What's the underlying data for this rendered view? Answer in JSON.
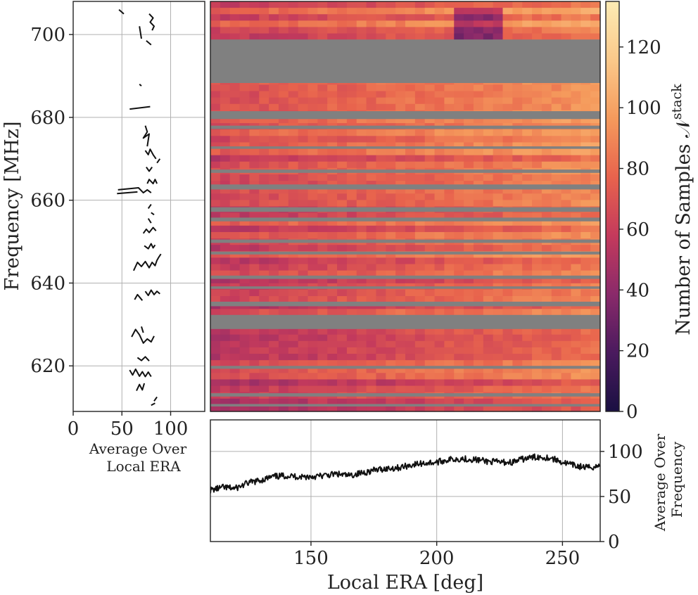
{
  "chart_data": [
    {
      "panel": "heatmap",
      "type": "heatmap",
      "xlim": [
        110,
        265
      ],
      "ylim": [
        609,
        708
      ],
      "gap_fill": "#808080",
      "colormap": [
        "#1a1042",
        "#4a1a5e",
        "#8a2a6a",
        "#c43a5c",
        "#e8634d",
        "#f59a5c",
        "#fbc98a",
        "#fdebb4"
      ],
      "flagged_bands": [
        [
          688.3,
          698.8
        ],
        [
          679.6,
          681.5
        ],
        [
          677.2,
          678.0
        ],
        [
          672.4,
          673.0
        ],
        [
          666.6,
          667.4
        ],
        [
          662.6,
          663.8
        ],
        [
          657.2,
          658.3
        ],
        [
          654.9,
          655.8
        ],
        [
          649.7,
          650.5
        ],
        [
          646.9,
          647.6
        ],
        [
          641.0,
          641.8
        ],
        [
          638.6,
          639.2
        ],
        [
          634.4,
          635.5
        ],
        [
          628.9,
          632.3
        ],
        [
          619.3,
          620.0
        ],
        [
          612.6,
          613.4
        ],
        [
          610.2,
          610.8
        ]
      ],
      "colorbar": {
        "label": "Number of Samples 𝒩",
        "label_sup": "stack",
        "range": [
          0,
          135
        ],
        "ticks": [
          "0",
          "20",
          "40",
          "60",
          "80",
          "100",
          "120"
        ]
      }
    },
    {
      "panel": "left",
      "type": "line",
      "ylabel": "Frequency [MHz]",
      "xlabel_line1": "Average Over",
      "xlabel_line2": "Local ERA",
      "xlim": [
        0,
        135
      ],
      "ylim": [
        609,
        708
      ],
      "xticks": [
        "0",
        "50",
        "100"
      ],
      "yticks": [
        "620",
        "640",
        "660",
        "680",
        "700"
      ],
      "segments": [
        [
          [
            47,
            706
          ],
          [
            52,
            705
          ]
        ],
        [
          [
            78,
            705
          ],
          [
            82,
            704
          ],
          [
            79,
            703
          ],
          [
            83,
            702
          ],
          [
            81,
            701
          ]
        ],
        [
          [
            68,
            702
          ],
          [
            70,
            699
          ]
        ],
        [
          [
            75,
            698.5
          ],
          [
            80,
            697.5
          ]
        ],
        [
          [
            68,
            688
          ],
          [
            70,
            687.6
          ]
        ],
        [
          [
            58,
            682
          ],
          [
            79,
            682.6
          ]
        ],
        [
          [
            74,
            678
          ],
          [
            76,
            676.5
          ],
          [
            72,
            675
          ],
          [
            78,
            676
          ],
          [
            76,
            673
          ]
        ],
        [
          [
            74,
            672
          ],
          [
            77,
            671
          ],
          [
            79,
            672.3
          ],
          [
            82,
            671
          ],
          [
            85,
            670
          ]
        ],
        [
          [
            75,
            668
          ],
          [
            78,
            667
          ],
          [
            81,
            668
          ]
        ],
        [
          [
            86,
            669
          ],
          [
            89,
            670
          ]
        ],
        [
          [
            76,
            664
          ],
          [
            78,
            665
          ],
          [
            82,
            664
          ],
          [
            84,
            665
          ],
          [
            86,
            664
          ]
        ],
        [
          [
            46,
            662.5
          ],
          [
            67,
            663
          ],
          [
            72,
            661.8
          ],
          [
            76,
            662.5
          ],
          [
            80,
            661.8
          ]
        ],
        [
          [
            45,
            661.6
          ],
          [
            66,
            662
          ]
        ],
        [
          [
            77,
            658
          ],
          [
            80,
            659
          ]
        ],
        [
          [
            80,
            657
          ],
          [
            83,
            656.5
          ]
        ],
        [
          [
            77,
            655.6
          ],
          [
            80,
            654.5
          ]
        ],
        [
          [
            72,
            652
          ],
          [
            75,
            653
          ],
          [
            78,
            652.2
          ],
          [
            82,
            653.4
          ],
          [
            85,
            652.6
          ]
        ],
        [
          [
            73,
            649
          ],
          [
            77,
            648.3
          ],
          [
            80,
            649.5
          ],
          [
            82,
            648.5
          ],
          [
            84,
            649.2
          ]
        ],
        [
          [
            62,
            643
          ],
          [
            66,
            645
          ],
          [
            70,
            644
          ],
          [
            74,
            645.2
          ],
          [
            78,
            643.7
          ],
          [
            81,
            645
          ],
          [
            84,
            644.2
          ],
          [
            86,
            645.5
          ],
          [
            88,
            646.3
          ],
          [
            90,
            647
          ]
        ],
        [
          [
            74,
            638
          ],
          [
            77,
            637
          ],
          [
            80,
            638.3
          ],
          [
            83,
            637.2
          ],
          [
            86,
            638
          ],
          [
            89,
            637.4
          ]
        ],
        [
          [
            63,
            636
          ],
          [
            66,
            637.2
          ],
          [
            71,
            635.8
          ]
        ],
        [
          [
            60,
            627
          ],
          [
            64,
            628.8
          ],
          [
            68,
            627.5
          ],
          [
            72,
            625.5
          ],
          [
            76,
            626.5
          ],
          [
            80,
            625.8
          ],
          [
            83,
            627.2
          ]
        ],
        [
          [
            70,
            629.5
          ],
          [
            72,
            628
          ]
        ],
        [
          [
            66,
            622
          ],
          [
            70,
            621.3
          ],
          [
            74,
            622.2
          ],
          [
            78,
            621.2
          ]
        ],
        [
          [
            58,
            619
          ],
          [
            61,
            617.8
          ],
          [
            64,
            619.2
          ],
          [
            68,
            617.5
          ],
          [
            71,
            618.6
          ],
          [
            74,
            617.4
          ],
          [
            77,
            618.5
          ],
          [
            80,
            617.4
          ]
        ],
        [
          [
            65,
            614
          ],
          [
            68,
            615.5
          ],
          [
            71,
            614.2
          ],
          [
            73,
            615.8
          ]
        ],
        [
          [
            83,
            611.5
          ],
          [
            86,
            612.5
          ]
        ],
        [
          [
            80,
            610.5
          ],
          [
            84,
            611
          ]
        ]
      ]
    },
    {
      "panel": "bottom",
      "type": "line",
      "xlabel": "Local ERA [deg]",
      "ylabel_line1": "Average Over",
      "ylabel_line2": "Frequency",
      "xlim": [
        110,
        265
      ],
      "ylim": [
        0,
        135
      ],
      "xticks": [
        "150",
        "200",
        "250"
      ],
      "yticks": [
        "0",
        "50",
        "100"
      ],
      "x": [
        110,
        115,
        120,
        125,
        130,
        135,
        140,
        145,
        150,
        155,
        160,
        165,
        170,
        175,
        180,
        185,
        190,
        195,
        200,
        205,
        210,
        215,
        220,
        225,
        230,
        235,
        240,
        245,
        250,
        255,
        260,
        265
      ],
      "y": [
        57,
        60,
        59,
        65,
        68,
        72,
        73,
        72,
        72,
        73,
        75,
        73,
        76,
        79,
        81,
        82,
        85,
        87,
        88,
        91,
        92,
        91,
        89,
        88,
        88,
        92,
        94,
        93,
        88,
        84,
        82,
        84
      ]
    }
  ]
}
